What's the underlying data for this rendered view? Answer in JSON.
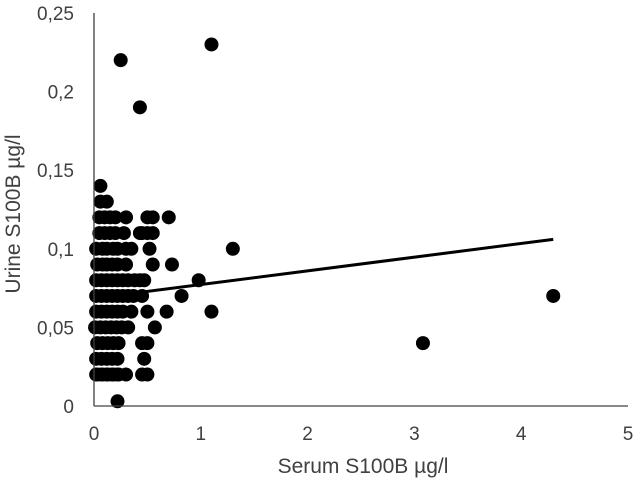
{
  "chart_data": {
    "type": "scatter",
    "title": "",
    "xlabel": "Serum S100B µg/l",
    "ylabel": "Urine S100B µg/l",
    "xlim": [
      0,
      5
    ],
    "ylim": [
      0,
      0.25
    ],
    "x_ticks": [
      "0",
      "1",
      "2",
      "3",
      "4",
      "5"
    ],
    "y_ticks": [
      "0",
      "0,05",
      "0,1",
      "0,15",
      "0,2",
      "0,25"
    ],
    "grid": false,
    "legend": "none",
    "marker_color": "#000000",
    "series": [
      {
        "x": [
          0.25,
          1.1,
          0.43,
          0.06,
          0.06,
          0.12,
          0.05,
          0.1,
          0.15,
          0.2,
          0.3,
          0.45,
          0.5,
          0.55,
          0.7,
          0.05,
          0.1,
          0.15,
          0.2,
          0.28,
          0.43,
          0.5,
          0.55,
          0.02,
          0.08,
          0.12,
          0.18,
          0.22,
          0.3,
          0.35,
          0.52,
          1.3,
          0.03,
          0.08,
          0.12,
          0.17,
          0.22,
          0.3,
          0.55,
          0.73,
          0.02,
          0.07,
          0.12,
          0.17,
          0.22,
          0.27,
          0.32,
          0.38,
          0.43,
          0.47,
          0.98,
          0.02,
          0.07,
          0.12,
          0.17,
          0.22,
          0.27,
          0.32,
          0.37,
          0.45,
          0.82,
          4.3,
          0.02,
          0.07,
          0.12,
          0.17,
          0.22,
          0.27,
          0.35,
          0.5,
          0.68,
          1.1,
          0.01,
          0.06,
          0.11,
          0.16,
          0.21,
          0.26,
          0.32,
          0.57,
          0.03,
          0.08,
          0.13,
          0.18,
          0.23,
          0.45,
          0.5,
          3.08,
          0.02,
          0.07,
          0.12,
          0.17,
          0.22,
          0.47,
          0.03,
          0.08,
          0.13,
          0.18,
          0.23,
          0.5,
          0.02,
          0.07,
          0.12,
          0.17,
          0.22,
          0.3,
          0.45,
          0.22
        ],
        "y": [
          0.22,
          0.23,
          0.19,
          0.14,
          0.13,
          0.13,
          0.12,
          0.12,
          0.12,
          0.12,
          0.12,
          0.11,
          0.12,
          0.12,
          0.12,
          0.11,
          0.11,
          0.11,
          0.11,
          0.11,
          0.11,
          0.11,
          0.11,
          0.1,
          0.1,
          0.1,
          0.1,
          0.1,
          0.1,
          0.1,
          0.1,
          0.1,
          0.09,
          0.09,
          0.09,
          0.09,
          0.09,
          0.09,
          0.09,
          0.09,
          0.08,
          0.08,
          0.08,
          0.08,
          0.08,
          0.08,
          0.08,
          0.08,
          0.08,
          0.08,
          0.08,
          0.07,
          0.07,
          0.07,
          0.07,
          0.07,
          0.07,
          0.07,
          0.07,
          0.07,
          0.07,
          0.07,
          0.06,
          0.06,
          0.06,
          0.06,
          0.06,
          0.06,
          0.06,
          0.06,
          0.06,
          0.06,
          0.05,
          0.05,
          0.05,
          0.05,
          0.05,
          0.05,
          0.05,
          0.05,
          0.04,
          0.04,
          0.04,
          0.04,
          0.04,
          0.04,
          0.04,
          0.04,
          0.03,
          0.03,
          0.03,
          0.03,
          0.03,
          0.03,
          0.02,
          0.02,
          0.02,
          0.02,
          0.02,
          0.02,
          0.02,
          0.02,
          0.02,
          0.02,
          0.02,
          0.02,
          0.02,
          0.003
        ]
      }
    ],
    "trendline": {
      "x": [
        0.05,
        4.3
      ],
      "y": [
        0.069,
        0.106
      ]
    }
  }
}
